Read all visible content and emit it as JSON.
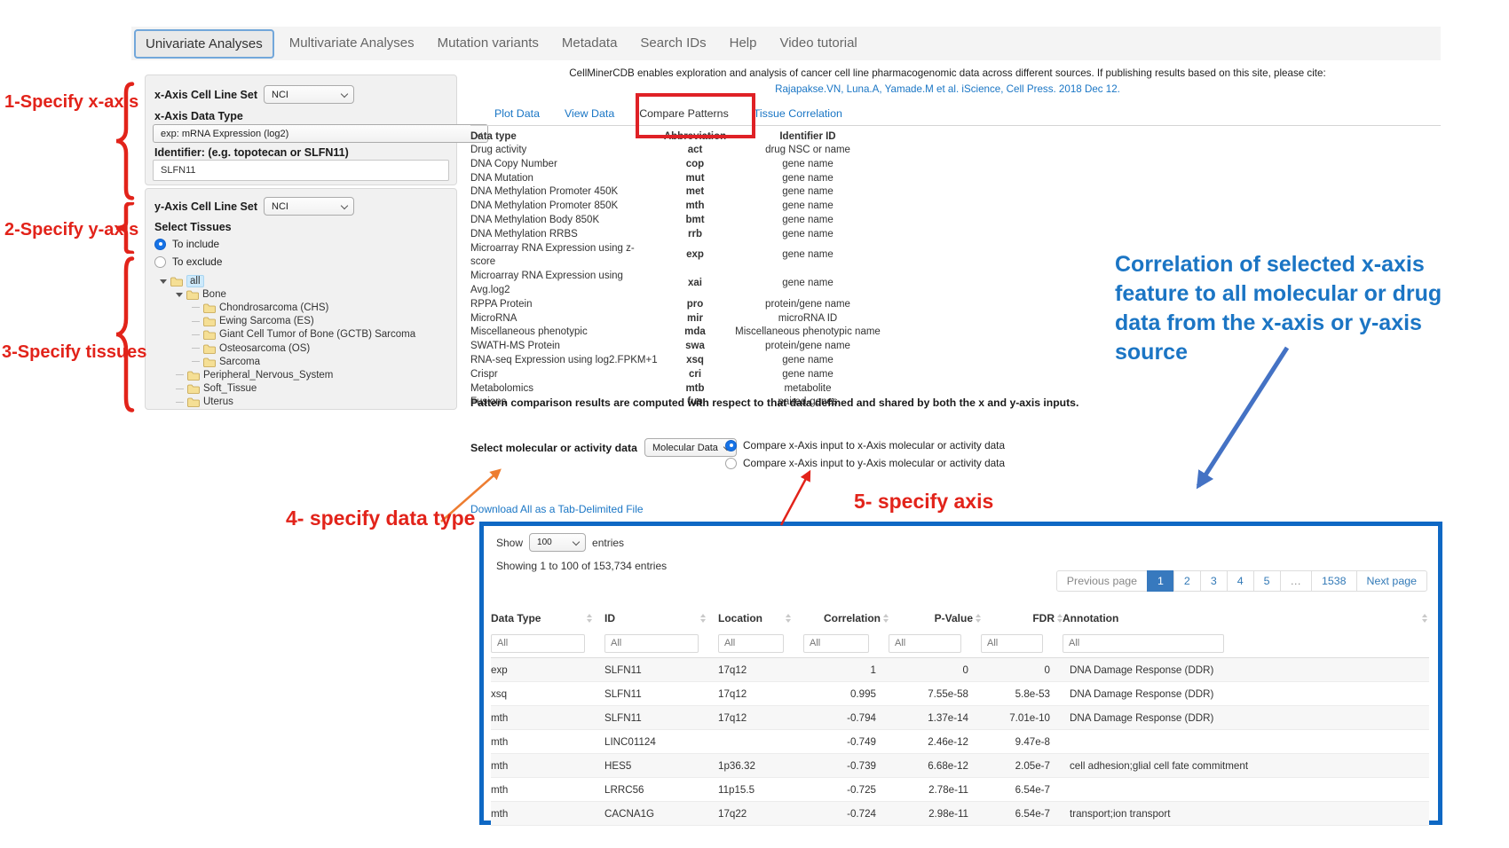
{
  "nav": {
    "tabs": [
      {
        "label": "Univariate Analyses",
        "active": true
      },
      {
        "label": "Multivariate Analyses",
        "active": false
      },
      {
        "label": "Mutation variants",
        "active": false
      },
      {
        "label": "Metadata",
        "active": false
      },
      {
        "label": "Search IDs",
        "active": false
      },
      {
        "label": "Help",
        "active": false
      },
      {
        "label": "Video tutorial",
        "active": false
      }
    ]
  },
  "citation": {
    "line1": "CellMinerCDB enables exploration and analysis of cancer cell line pharmacogenomic data across different sources. If publishing results based on this site, please cite:",
    "line2": "Rajapakse.VN, Luna.A, Yamade.M et al. iScience, Cell Press. 2018 Dec 12."
  },
  "subtabs": [
    {
      "label": "Plot Data",
      "active": false
    },
    {
      "label": "View Data",
      "active": false
    },
    {
      "label": "Compare Patterns",
      "active": true
    },
    {
      "label": "Tissue Correlation",
      "active": false
    }
  ],
  "xaxis_panel": {
    "cell_line_set_label": "x-Axis Cell Line Set",
    "cell_line_set_value": "NCI",
    "data_type_label": "x-Axis Data Type",
    "data_type_value": "exp: mRNA Expression (log2)",
    "identifier_label": "Identifier: (e.g. topotecan or SLFN11)",
    "identifier_value": "SLFN11"
  },
  "yaxis_panel": {
    "cell_line_set_label": "y-Axis Cell Line Set",
    "cell_line_set_value": "NCI",
    "select_tissues_label": "Select Tissues",
    "radio_include": "To include",
    "radio_exclude": "To exclude",
    "tree": [
      {
        "label": "all",
        "depth": 0,
        "expanded": true,
        "selected": true
      },
      {
        "label": "Bone",
        "depth": 1,
        "expanded": true,
        "selected": false
      },
      {
        "label": "Chondrosarcoma (CHS)",
        "depth": 2,
        "expanded": false,
        "selected": false
      },
      {
        "label": "Ewing Sarcoma (ES)",
        "depth": 2,
        "expanded": false,
        "selected": false
      },
      {
        "label": "Giant Cell Tumor of Bone (GCTB) Sarcoma",
        "depth": 2,
        "expanded": false,
        "selected": false
      },
      {
        "label": "Osteosarcoma (OS)",
        "depth": 2,
        "expanded": false,
        "selected": false
      },
      {
        "label": "Sarcoma",
        "depth": 2,
        "expanded": false,
        "selected": false
      },
      {
        "label": "Peripheral_Nervous_System",
        "depth": 1,
        "expanded": false,
        "selected": false
      },
      {
        "label": "Soft_Tissue",
        "depth": 1,
        "expanded": false,
        "selected": false
      },
      {
        "label": "Uterus",
        "depth": 1,
        "expanded": false,
        "selected": false
      }
    ]
  },
  "datatype_table": {
    "headers": [
      "Data type",
      "Abbreviation",
      "Identifier ID"
    ],
    "rows": [
      [
        "Drug activity",
        "act",
        "drug NSC or name"
      ],
      [
        "DNA Copy Number",
        "cop",
        "gene name"
      ],
      [
        "DNA Mutation",
        "mut",
        "gene name"
      ],
      [
        "DNA Methylation Promoter 450K",
        "met",
        "gene name"
      ],
      [
        "DNA Methylation Promoter 850K",
        "mth",
        "gene name"
      ],
      [
        "DNA Methylation Body 850K",
        "bmt",
        "gene name"
      ],
      [
        "DNA Methylation RRBS",
        "rrb",
        "gene name"
      ],
      [
        "Microarray RNA Expression using z-score",
        "exp",
        "gene name"
      ],
      [
        "Microarray RNA Expression using Avg.log2",
        "xai",
        "gene name"
      ],
      [
        "RPPA Protein",
        "pro",
        "protein/gene name"
      ],
      [
        "MicroRNA",
        "mir",
        "microRNA ID"
      ],
      [
        "Miscellaneous phenotypic",
        "mda",
        "Miscellaneous phenotypic name"
      ],
      [
        "SWATH-MS Protein",
        "swa",
        "protein/gene name"
      ],
      [
        "RNA-seq Expression using log2.FPKM+1",
        "xsq",
        "gene name"
      ],
      [
        "Crispr",
        "cri",
        "gene name"
      ],
      [
        "Metabolomics",
        "mtb",
        "metabolite"
      ],
      [
        "Fusions",
        "fus",
        "paired-genes"
      ]
    ]
  },
  "note": "Pattern comparison results are computed with respect to that data defined and shared by both the x and y-axis inputs.",
  "molecular_select": {
    "label": "Select molecular or activity data",
    "value": "Molecular Data"
  },
  "axis_radios": [
    {
      "label": "Compare x-Axis input to x-Axis molecular or activity data",
      "selected": true
    },
    {
      "label": "Compare x-Axis input to y-Axis molecular or activity data",
      "selected": false
    }
  ],
  "download_link": "Download All as a Tab-Delimited File",
  "results": {
    "show_label": "Show",
    "show_value": "100",
    "entries_label": "entries",
    "summary": "Showing 1 to 100 of 153,734 entries",
    "filter_placeholder": "All",
    "pagination": [
      {
        "label": "Previous page",
        "active": false,
        "muted": true
      },
      {
        "label": "1",
        "active": true,
        "muted": false
      },
      {
        "label": "2",
        "active": false,
        "muted": false
      },
      {
        "label": "3",
        "active": false,
        "muted": false
      },
      {
        "label": "4",
        "active": false,
        "muted": false
      },
      {
        "label": "5",
        "active": false,
        "muted": false
      },
      {
        "label": "…",
        "active": false,
        "muted": true
      },
      {
        "label": "1538",
        "active": false,
        "muted": false
      },
      {
        "label": "Next page",
        "active": false,
        "muted": false
      }
    ],
    "headers": [
      "Data Type",
      "ID",
      "Location",
      "Correlation",
      "P-Value",
      "FDR",
      "Annotation"
    ],
    "rows": [
      {
        "data_type": "exp",
        "id": "SLFN11",
        "location": "17q12",
        "correlation": "1",
        "p_value": "0",
        "fdr": "0",
        "annotation": "DNA Damage Response (DDR)"
      },
      {
        "data_type": "xsq",
        "id": "SLFN11",
        "location": "17q12",
        "correlation": "0.995",
        "p_value": "7.55e-58",
        "fdr": "5.8e-53",
        "annotation": "DNA Damage Response (DDR)"
      },
      {
        "data_type": "mth",
        "id": "SLFN11",
        "location": "17q12",
        "correlation": "-0.794",
        "p_value": "1.37e-14",
        "fdr": "7.01e-10",
        "annotation": "DNA Damage Response (DDR)"
      },
      {
        "data_type": "mth",
        "id": "LINC01124",
        "location": "",
        "correlation": "-0.749",
        "p_value": "2.46e-12",
        "fdr": "9.47e-8",
        "annotation": ""
      },
      {
        "data_type": "mth",
        "id": "HES5",
        "location": "1p36.32",
        "correlation": "-0.739",
        "p_value": "6.68e-12",
        "fdr": "2.05e-7",
        "annotation": "cell adhesion;glial cell fate commitment"
      },
      {
        "data_type": "mth",
        "id": "LRRC56",
        "location": "11p15.5",
        "correlation": "-0.725",
        "p_value": "2.78e-11",
        "fdr": "6.54e-7",
        "annotation": ""
      },
      {
        "data_type": "mth",
        "id": "CACNA1G",
        "location": "17q22",
        "correlation": "-0.724",
        "p_value": "2.98e-11",
        "fdr": "6.54e-7",
        "annotation": "transport;ion transport"
      }
    ]
  },
  "annotations": {
    "step1": "1-Specify x-axis",
    "step2": "2-Specify y-axis",
    "step3": "3-Specify tissues",
    "step4": "4- specify data type",
    "step5": "5- specify axis",
    "correlation_lines": [
      "Correlation of selected x-axis",
      "feature to all molecular or drug",
      "data from the x-axis or y-axis",
      "source"
    ],
    "colors": {
      "red": "#e2231a",
      "orange": "#ed7d31",
      "blue_note_text": "#1b75c4",
      "blue_arrow": "#4472c4",
      "blue_box_border": "#0e68c4",
      "link_blue": "#1a76c5",
      "active_page_blue": "#3779be"
    }
  }
}
